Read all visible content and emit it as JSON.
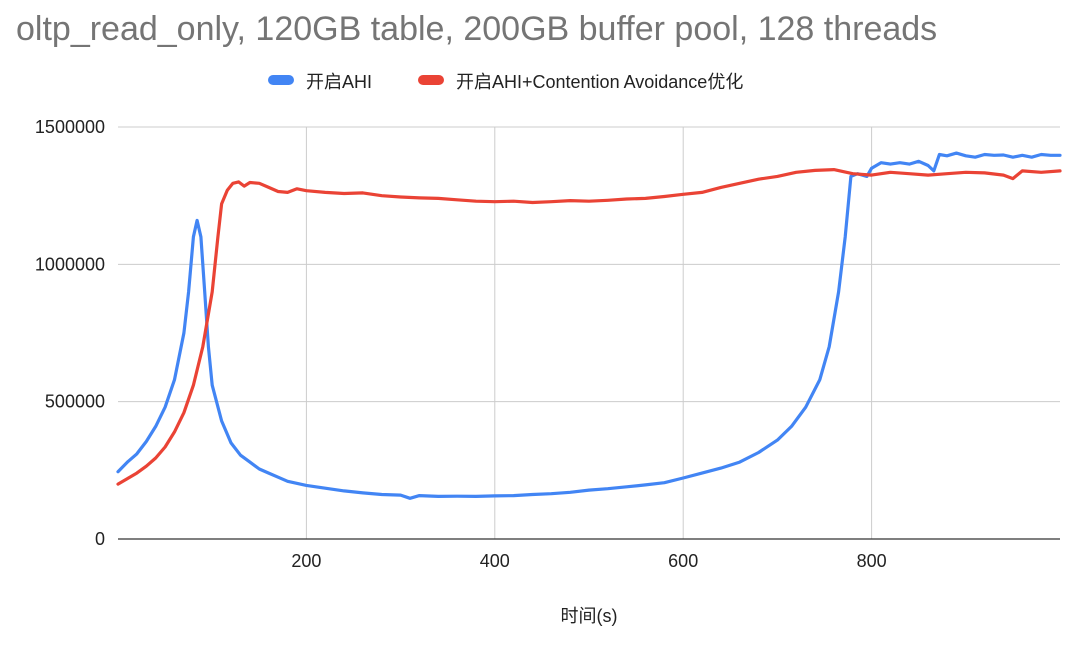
{
  "chart_data": {
    "type": "line",
    "title": "oltp_read_only, 120GB table, 200GB buffer pool, 128 threads",
    "xlabel": "时间(s)",
    "ylabel": "",
    "xlim": [
      0,
      1000
    ],
    "ylim": [
      0,
      1500000
    ],
    "x_ticks": [
      200,
      400,
      600,
      800
    ],
    "y_ticks": [
      0,
      500000,
      1000000,
      1500000
    ],
    "grid": true,
    "legend_position": "top",
    "series": [
      {
        "name": "开启AHI",
        "color": "#4285f4",
        "points": [
          [
            0,
            245000
          ],
          [
            10,
            280000
          ],
          [
            20,
            310000
          ],
          [
            30,
            355000
          ],
          [
            40,
            410000
          ],
          [
            50,
            480000
          ],
          [
            60,
            580000
          ],
          [
            70,
            750000
          ],
          [
            75,
            900000
          ],
          [
            80,
            1100000
          ],
          [
            84,
            1160000
          ],
          [
            88,
            1100000
          ],
          [
            92,
            900000
          ],
          [
            96,
            700000
          ],
          [
            100,
            560000
          ],
          [
            110,
            430000
          ],
          [
            120,
            350000
          ],
          [
            130,
            305000
          ],
          [
            140,
            280000
          ],
          [
            150,
            255000
          ],
          [
            160,
            240000
          ],
          [
            170,
            225000
          ],
          [
            180,
            210000
          ],
          [
            200,
            195000
          ],
          [
            220,
            185000
          ],
          [
            240,
            175000
          ],
          [
            260,
            168000
          ],
          [
            280,
            162000
          ],
          [
            300,
            160000
          ],
          [
            310,
            148000
          ],
          [
            320,
            158000
          ],
          [
            340,
            155000
          ],
          [
            360,
            156000
          ],
          [
            380,
            155000
          ],
          [
            400,
            157000
          ],
          [
            420,
            158000
          ],
          [
            440,
            162000
          ],
          [
            460,
            165000
          ],
          [
            480,
            170000
          ],
          [
            500,
            178000
          ],
          [
            520,
            183000
          ],
          [
            540,
            190000
          ],
          [
            560,
            197000
          ],
          [
            580,
            205000
          ],
          [
            600,
            222000
          ],
          [
            620,
            240000
          ],
          [
            640,
            258000
          ],
          [
            660,
            280000
          ],
          [
            680,
            315000
          ],
          [
            700,
            360000
          ],
          [
            715,
            410000
          ],
          [
            730,
            480000
          ],
          [
            745,
            580000
          ],
          [
            755,
            700000
          ],
          [
            765,
            900000
          ],
          [
            772,
            1100000
          ],
          [
            778,
            1320000
          ],
          [
            785,
            1330000
          ],
          [
            795,
            1320000
          ],
          [
            800,
            1350000
          ],
          [
            810,
            1370000
          ],
          [
            820,
            1365000
          ],
          [
            830,
            1370000
          ],
          [
            840,
            1365000
          ],
          [
            850,
            1375000
          ],
          [
            860,
            1360000
          ],
          [
            866,
            1340000
          ],
          [
            872,
            1400000
          ],
          [
            880,
            1395000
          ],
          [
            890,
            1405000
          ],
          [
            900,
            1395000
          ],
          [
            910,
            1390000
          ],
          [
            920,
            1400000
          ],
          [
            930,
            1397000
          ],
          [
            940,
            1398000
          ],
          [
            950,
            1390000
          ],
          [
            960,
            1397000
          ],
          [
            970,
            1390000
          ],
          [
            980,
            1400000
          ],
          [
            990,
            1397000
          ],
          [
            1000,
            1397000
          ]
        ]
      },
      {
        "name": "开启AHI+Contention Avoidance优化",
        "color": "#ea4335",
        "points": [
          [
            0,
            200000
          ],
          [
            10,
            220000
          ],
          [
            20,
            240000
          ],
          [
            30,
            265000
          ],
          [
            40,
            295000
          ],
          [
            50,
            335000
          ],
          [
            60,
            390000
          ],
          [
            70,
            460000
          ],
          [
            80,
            560000
          ],
          [
            90,
            700000
          ],
          [
            100,
            900000
          ],
          [
            106,
            1100000
          ],
          [
            110,
            1220000
          ],
          [
            116,
            1270000
          ],
          [
            122,
            1295000
          ],
          [
            128,
            1300000
          ],
          [
            134,
            1285000
          ],
          [
            140,
            1298000
          ],
          [
            150,
            1295000
          ],
          [
            160,
            1280000
          ],
          [
            170,
            1265000
          ],
          [
            180,
            1262000
          ],
          [
            190,
            1275000
          ],
          [
            200,
            1268000
          ],
          [
            220,
            1262000
          ],
          [
            240,
            1258000
          ],
          [
            260,
            1260000
          ],
          [
            280,
            1250000
          ],
          [
            300,
            1245000
          ],
          [
            320,
            1242000
          ],
          [
            340,
            1240000
          ],
          [
            360,
            1235000
          ],
          [
            380,
            1230000
          ],
          [
            400,
            1228000
          ],
          [
            420,
            1230000
          ],
          [
            440,
            1225000
          ],
          [
            460,
            1228000
          ],
          [
            480,
            1232000
          ],
          [
            500,
            1230000
          ],
          [
            520,
            1233000
          ],
          [
            540,
            1238000
          ],
          [
            560,
            1240000
          ],
          [
            580,
            1247000
          ],
          [
            600,
            1255000
          ],
          [
            620,
            1262000
          ],
          [
            640,
            1280000
          ],
          [
            660,
            1295000
          ],
          [
            680,
            1310000
          ],
          [
            700,
            1320000
          ],
          [
            720,
            1335000
          ],
          [
            740,
            1342000
          ],
          [
            760,
            1345000
          ],
          [
            780,
            1330000
          ],
          [
            800,
            1325000
          ],
          [
            820,
            1335000
          ],
          [
            840,
            1330000
          ],
          [
            860,
            1325000
          ],
          [
            880,
            1330000
          ],
          [
            900,
            1335000
          ],
          [
            920,
            1333000
          ],
          [
            940,
            1325000
          ],
          [
            950,
            1312000
          ],
          [
            960,
            1340000
          ],
          [
            980,
            1335000
          ],
          [
            1000,
            1340000
          ]
        ]
      }
    ]
  }
}
